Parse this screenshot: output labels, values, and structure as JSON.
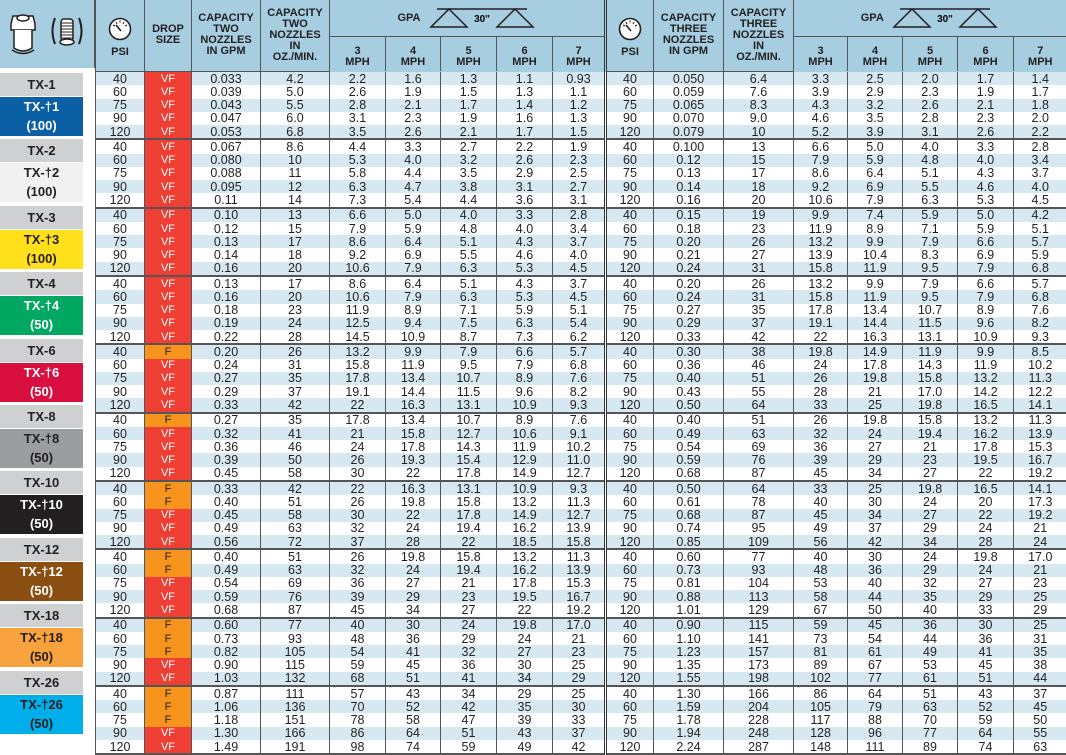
{
  "header": {
    "psi": "PSI",
    "drop_size": [
      "DROP",
      "SIZE"
    ],
    "cap_two_gpm": [
      "CAPACITY",
      "TWO",
      "NOZZLES",
      "IN GPM"
    ],
    "cap_two_oz": [
      "CAPACITY",
      "TWO",
      "NOZZLES",
      "IN",
      "OZ./MIN."
    ],
    "cap_three_gpm": [
      "CAPACITY",
      "THREE",
      "NOZZLES",
      "IN GPM"
    ],
    "cap_three_oz": [
      "CAPACITY",
      "THREE",
      "NOZZLES",
      "IN",
      "OZ./MIN."
    ],
    "gpa": "GPA",
    "spacing": "30\"",
    "speeds": [
      "3",
      "4",
      "5",
      "6",
      "7"
    ],
    "mph": "MPH",
    "icons": [
      "nozzle-icon",
      "strainer-icon",
      "pressure-gauge-icon",
      "spray-pattern-icon"
    ]
  },
  "colors": {
    "header_bg": "#a6cde0",
    "row_shade": "#d6e8f1",
    "label_gray": "#cfd0d2",
    "VF": "#ef3e33",
    "F": "#f7941d"
  },
  "groups": [
    {
      "label": "TX-1",
      "tip": "TX-†1",
      "mesh": "(100)",
      "color": "#0b5fa5",
      "text_color": "#ffffff",
      "rows": [
        [
          "40",
          "VF",
          "0.033",
          "4.2",
          "2.2",
          "1.6",
          "1.3",
          "1.1",
          "0.93",
          "40",
          "0.050",
          "6.4",
          "3.3",
          "2.5",
          "2.0",
          "1.7",
          "1.4"
        ],
        [
          "60",
          "VF",
          "0.039",
          "5.0",
          "2.6",
          "1.9",
          "1.5",
          "1.3",
          "1.1",
          "60",
          "0.059",
          "7.6",
          "3.9",
          "2.9",
          "2.3",
          "1.9",
          "1.7"
        ],
        [
          "75",
          "VF",
          "0.043",
          "5.5",
          "2.8",
          "2.1",
          "1.7",
          "1.4",
          "1.2",
          "75",
          "0.065",
          "8.3",
          "4.3",
          "3.2",
          "2.6",
          "2.1",
          "1.8"
        ],
        [
          "90",
          "VF",
          "0.047",
          "6.0",
          "3.1",
          "2.3",
          "1.9",
          "1.6",
          "1.3",
          "90",
          "0.070",
          "9.0",
          "4.6",
          "3.5",
          "2.8",
          "2.3",
          "2.0"
        ],
        [
          "120",
          "VF",
          "0.053",
          "6.8",
          "3.5",
          "2.6",
          "2.1",
          "1.7",
          "1.5",
          "120",
          "0.079",
          "10",
          "5.2",
          "3.9",
          "3.1",
          "2.6",
          "2.2"
        ]
      ]
    },
    {
      "label": "TX-2",
      "tip": "TX-†2",
      "mesh": "(100)",
      "color": "#f1f1f1",
      "text_color": "#231f20",
      "rows": [
        [
          "40",
          "VF",
          "0.067",
          "8.6",
          "4.4",
          "3.3",
          "2.7",
          "2.2",
          "1.9",
          "40",
          "0.100",
          "13",
          "6.6",
          "5.0",
          "4.0",
          "3.3",
          "2.8"
        ],
        [
          "60",
          "VF",
          "0.080",
          "10",
          "5.3",
          "4.0",
          "3.2",
          "2.6",
          "2.3",
          "60",
          "0.12",
          "15",
          "7.9",
          "5.9",
          "4.8",
          "4.0",
          "3.4"
        ],
        [
          "75",
          "VF",
          "0.088",
          "11",
          "5.8",
          "4.4",
          "3.5",
          "2.9",
          "2.5",
          "75",
          "0.13",
          "17",
          "8.6",
          "6.4",
          "5.1",
          "4.3",
          "3.7"
        ],
        [
          "90",
          "VF",
          "0.095",
          "12",
          "6.3",
          "4.7",
          "3.8",
          "3.1",
          "2.7",
          "90",
          "0.14",
          "18",
          "9.2",
          "6.9",
          "5.5",
          "4.6",
          "4.0"
        ],
        [
          "120",
          "VF",
          "0.11",
          "14",
          "7.3",
          "5.4",
          "4.4",
          "3.6",
          "3.1",
          "120",
          "0.16",
          "20",
          "10.6",
          "7.9",
          "6.3",
          "5.3",
          "4.5"
        ]
      ]
    },
    {
      "label": "TX-3",
      "tip": "TX-†3",
      "mesh": "(100)",
      "color": "#ffe01b",
      "text_color": "#231f20",
      "rows": [
        [
          "40",
          "VF",
          "0.10",
          "13",
          "6.6",
          "5.0",
          "4.0",
          "3.3",
          "2.8",
          "40",
          "0.15",
          "19",
          "9.9",
          "7.4",
          "5.9",
          "5.0",
          "4.2"
        ],
        [
          "60",
          "VF",
          "0.12",
          "15",
          "7.9",
          "5.9",
          "4.8",
          "4.0",
          "3.4",
          "60",
          "0.18",
          "23",
          "11.9",
          "8.9",
          "7.1",
          "5.9",
          "5.1"
        ],
        [
          "75",
          "VF",
          "0.13",
          "17",
          "8.6",
          "6.4",
          "5.1",
          "4.3",
          "3.7",
          "75",
          "0.20",
          "26",
          "13.2",
          "9.9",
          "7.9",
          "6.6",
          "5.7"
        ],
        [
          "90",
          "VF",
          "0.14",
          "18",
          "9.2",
          "6.9",
          "5.5",
          "4.6",
          "4.0",
          "90",
          "0.21",
          "27",
          "13.9",
          "10.4",
          "8.3",
          "6.9",
          "5.9"
        ],
        [
          "120",
          "VF",
          "0.16",
          "20",
          "10.6",
          "7.9",
          "6.3",
          "5.3",
          "4.5",
          "120",
          "0.24",
          "31",
          "15.8",
          "11.9",
          "9.5",
          "7.9",
          "6.8"
        ]
      ]
    },
    {
      "label": "TX-4",
      "tip": "TX-†4",
      "mesh": "(50)",
      "color": "#00a862",
      "text_color": "#ffffff",
      "rows": [
        [
          "40",
          "VF",
          "0.13",
          "17",
          "8.6",
          "6.4",
          "5.1",
          "4.3",
          "3.7",
          "40",
          "0.20",
          "26",
          "13.2",
          "9.9",
          "7.9",
          "6.6",
          "5.7"
        ],
        [
          "60",
          "VF",
          "0.16",
          "20",
          "10.6",
          "7.9",
          "6.3",
          "5.3",
          "4.5",
          "60",
          "0.24",
          "31",
          "15.8",
          "11.9",
          "9.5",
          "7.9",
          "6.8"
        ],
        [
          "75",
          "VF",
          "0.18",
          "23",
          "11.9",
          "8.9",
          "7.1",
          "5.9",
          "5.1",
          "75",
          "0.27",
          "35",
          "17.8",
          "13.4",
          "10.7",
          "8.9",
          "7.6"
        ],
        [
          "90",
          "VF",
          "0.19",
          "24",
          "12.5",
          "9.4",
          "7.5",
          "6.3",
          "5.4",
          "90",
          "0.29",
          "37",
          "19.1",
          "14.4",
          "11.5",
          "9.6",
          "8.2"
        ],
        [
          "120",
          "VF",
          "0.22",
          "28",
          "14.5",
          "10.9",
          "8.7",
          "7.3",
          "6.2",
          "120",
          "0.33",
          "42",
          "22",
          "16.3",
          "13.1",
          "10.9",
          "9.3"
        ]
      ]
    },
    {
      "label": "TX-6",
      "tip": "TX-†6",
      "mesh": "(50)",
      "color": "#d9103f",
      "text_color": "#ffffff",
      "rows": [
        [
          "40",
          "F",
          "0.20",
          "26",
          "13.2",
          "9.9",
          "7.9",
          "6.6",
          "5.7",
          "40",
          "0.30",
          "38",
          "19.8",
          "14.9",
          "11.9",
          "9.9",
          "8.5"
        ],
        [
          "60",
          "VF",
          "0.24",
          "31",
          "15.8",
          "11.9",
          "9.5",
          "7.9",
          "6.8",
          "60",
          "0.36",
          "46",
          "24",
          "17.8",
          "14.3",
          "11.9",
          "10.2"
        ],
        [
          "75",
          "VF",
          "0.27",
          "35",
          "17.8",
          "13.4",
          "10.7",
          "8.9",
          "7.6",
          "75",
          "0.40",
          "51",
          "26",
          "19.8",
          "15.8",
          "13.2",
          "11.3"
        ],
        [
          "90",
          "VF",
          "0.29",
          "37",
          "19.1",
          "14.4",
          "11.5",
          "9.6",
          "8.2",
          "90",
          "0.43",
          "55",
          "28",
          "21",
          "17.0",
          "14.2",
          "12.2"
        ],
        [
          "120",
          "VF",
          "0.33",
          "42",
          "22",
          "16.3",
          "13.1",
          "10.9",
          "9.3",
          "120",
          "0.50",
          "64",
          "33",
          "25",
          "19.8",
          "16.5",
          "14.1"
        ]
      ]
    },
    {
      "label": "TX-8",
      "tip": "TX-†8",
      "mesh": "(50)",
      "color": "#9b9da1",
      "text_color": "#231f20",
      "rows": [
        [
          "40",
          "F",
          "0.27",
          "35",
          "17.8",
          "13.4",
          "10.7",
          "8.9",
          "7.6",
          "40",
          "0.40",
          "51",
          "26",
          "19.8",
          "15.8",
          "13.2",
          "11.3"
        ],
        [
          "60",
          "VF",
          "0.32",
          "41",
          "21",
          "15.8",
          "12.7",
          "10.6",
          "9.1",
          "60",
          "0.49",
          "63",
          "32",
          "24",
          "19.4",
          "16.2",
          "13.9"
        ],
        [
          "75",
          "VF",
          "0.36",
          "46",
          "24",
          "17.8",
          "14.3",
          "11.9",
          "10.2",
          "75",
          "0.54",
          "69",
          "36",
          "27",
          "21",
          "17.8",
          "15.3"
        ],
        [
          "90",
          "VF",
          "0.39",
          "50",
          "26",
          "19.3",
          "15.4",
          "12.9",
          "11.0",
          "90",
          "0.59",
          "76",
          "39",
          "29",
          "23",
          "19.5",
          "16.7"
        ],
        [
          "120",
          "VF",
          "0.45",
          "58",
          "30",
          "22",
          "17.8",
          "14.9",
          "12.7",
          "120",
          "0.68",
          "87",
          "45",
          "34",
          "27",
          "22",
          "19.2"
        ]
      ]
    },
    {
      "label": "TX-10",
      "tip": "TX-†10",
      "mesh": "(50)",
      "color": "#231f20",
      "text_color": "#ffffff",
      "rows": [
        [
          "40",
          "F",
          "0.33",
          "42",
          "22",
          "16.3",
          "13.1",
          "10.9",
          "9.3",
          "40",
          "0.50",
          "64",
          "33",
          "25",
          "19.8",
          "16.5",
          "14.1"
        ],
        [
          "60",
          "F",
          "0.40",
          "51",
          "26",
          "19.8",
          "15.8",
          "13.2",
          "11.3",
          "60",
          "0.61",
          "78",
          "40",
          "30",
          "24",
          "20",
          "17.3"
        ],
        [
          "75",
          "VF",
          "0.45",
          "58",
          "30",
          "22",
          "17.8",
          "14.9",
          "12.7",
          "75",
          "0.68",
          "87",
          "45",
          "34",
          "27",
          "22",
          "19.2"
        ],
        [
          "90",
          "VF",
          "0.49",
          "63",
          "32",
          "24",
          "19.4",
          "16.2",
          "13.9",
          "90",
          "0.74",
          "95",
          "49",
          "37",
          "29",
          "24",
          "21"
        ],
        [
          "120",
          "VF",
          "0.56",
          "72",
          "37",
          "28",
          "22",
          "18.5",
          "15.8",
          "120",
          "0.85",
          "109",
          "56",
          "42",
          "34",
          "28",
          "24"
        ]
      ]
    },
    {
      "label": "TX-12",
      "tip": "TX-†12",
      "mesh": "(50)",
      "color": "#8a4f10",
      "text_color": "#ffffff",
      "rows": [
        [
          "40",
          "F",
          "0.40",
          "51",
          "26",
          "19.8",
          "15.8",
          "13.2",
          "11.3",
          "40",
          "0.60",
          "77",
          "40",
          "30",
          "24",
          "19.8",
          "17.0"
        ],
        [
          "60",
          "F",
          "0.49",
          "63",
          "32",
          "24",
          "19.4",
          "16.2",
          "13.9",
          "60",
          "0.73",
          "93",
          "48",
          "36",
          "29",
          "24",
          "21"
        ],
        [
          "75",
          "VF",
          "0.54",
          "69",
          "36",
          "27",
          "21",
          "17.8",
          "15.3",
          "75",
          "0.81",
          "104",
          "53",
          "40",
          "32",
          "27",
          "23"
        ],
        [
          "90",
          "VF",
          "0.59",
          "76",
          "39",
          "29",
          "23",
          "19.5",
          "16.7",
          "90",
          "0.88",
          "113",
          "58",
          "44",
          "35",
          "29",
          "25"
        ],
        [
          "120",
          "VF",
          "0.68",
          "87",
          "45",
          "34",
          "27",
          "22",
          "19.2",
          "120",
          "1.01",
          "129",
          "67",
          "50",
          "40",
          "33",
          "29"
        ]
      ]
    },
    {
      "label": "TX-18",
      "tip": "TX-†18",
      "mesh": "(50)",
      "color": "#f7a23c",
      "text_color": "#231f20",
      "rows": [
        [
          "40",
          "F",
          "0.60",
          "77",
          "40",
          "30",
          "24",
          "19.8",
          "17.0",
          "40",
          "0.90",
          "115",
          "59",
          "45",
          "36",
          "30",
          "25"
        ],
        [
          "60",
          "F",
          "0.73",
          "93",
          "48",
          "36",
          "29",
          "24",
          "21",
          "60",
          "1.10",
          "141",
          "73",
          "54",
          "44",
          "36",
          "31"
        ],
        [
          "75",
          "F",
          "0.82",
          "105",
          "54",
          "41",
          "32",
          "27",
          "23",
          "75",
          "1.23",
          "157",
          "81",
          "61",
          "49",
          "41",
          "35"
        ],
        [
          "90",
          "VF",
          "0.90",
          "115",
          "59",
          "45",
          "36",
          "30",
          "25",
          "90",
          "1.35",
          "173",
          "89",
          "67",
          "53",
          "45",
          "38"
        ],
        [
          "120",
          "VF",
          "1.03",
          "132",
          "68",
          "51",
          "41",
          "34",
          "29",
          "120",
          "1.55",
          "198",
          "102",
          "77",
          "61",
          "51",
          "44"
        ]
      ]
    },
    {
      "label": "TX-26",
      "tip": "TX-†26",
      "mesh": "(50)",
      "color": "#00aeea",
      "text_color": "#231f20",
      "rows": [
        [
          "40",
          "F",
          "0.87",
          "111",
          "57",
          "43",
          "34",
          "29",
          "25",
          "40",
          "1.30",
          "166",
          "86",
          "64",
          "51",
          "43",
          "37"
        ],
        [
          "60",
          "F",
          "1.06",
          "136",
          "70",
          "52",
          "42",
          "35",
          "30",
          "60",
          "1.59",
          "204",
          "105",
          "79",
          "63",
          "52",
          "45"
        ],
        [
          "75",
          "F",
          "1.18",
          "151",
          "78",
          "58",
          "47",
          "39",
          "33",
          "75",
          "1.78",
          "228",
          "117",
          "88",
          "70",
          "59",
          "50"
        ],
        [
          "90",
          "VF",
          "1.30",
          "166",
          "86",
          "64",
          "51",
          "43",
          "37",
          "90",
          "1.94",
          "248",
          "128",
          "96",
          "77",
          "64",
          "55"
        ],
        [
          "120",
          "VF",
          "1.49",
          "191",
          "98",
          "74",
          "59",
          "49",
          "42",
          "120",
          "2.24",
          "287",
          "148",
          "111",
          "89",
          "74",
          "63"
        ]
      ]
    }
  ]
}
